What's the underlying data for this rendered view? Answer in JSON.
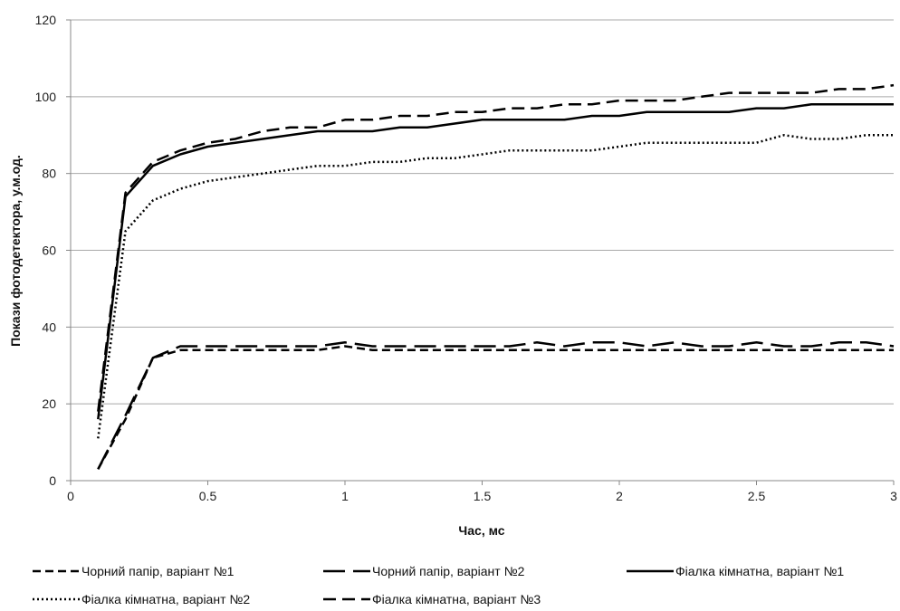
{
  "chart_data": {
    "type": "line",
    "title": "",
    "xlabel": "Час, мс",
    "ylabel": "Покази фотодетектора, у.м.од.",
    "xlim": [
      0,
      3
    ],
    "ylim": [
      0,
      120
    ],
    "xticks": [
      0,
      0.5,
      1,
      1.5,
      2,
      2.5,
      3
    ],
    "xtick_labels": [
      "0",
      "0.5",
      "1",
      "1.5",
      "2",
      "2.5",
      "3"
    ],
    "yticks": [
      0,
      20,
      40,
      60,
      80,
      100,
      120
    ],
    "ytick_labels": [
      "0",
      "20",
      "40",
      "60",
      "80",
      "100",
      "120"
    ],
    "grid": "horizontal",
    "legend_position": "bottom",
    "x": [
      0.1,
      0.2,
      0.3,
      0.4,
      0.5,
      0.6,
      0.7,
      0.8,
      0.9,
      1.0,
      1.1,
      1.2,
      1.3,
      1.4,
      1.5,
      1.6,
      1.7,
      1.8,
      1.9,
      2.0,
      2.1,
      2.2,
      2.3,
      2.4,
      2.5,
      2.6,
      2.7,
      2.8,
      2.9,
      3.0
    ],
    "series": [
      {
        "name": "Чорний папір, варіант №1",
        "style": "short-dash",
        "values": [
          3,
          16,
          32,
          34,
          34,
          34,
          34,
          34,
          34,
          35,
          34,
          34,
          34,
          34,
          34,
          34,
          34,
          34,
          34,
          34,
          34,
          34,
          34,
          34,
          34,
          34,
          34,
          34,
          34,
          34
        ]
      },
      {
        "name": "Чорний папір, варіант №2",
        "style": "long-dash",
        "values": [
          3,
          17,
          32,
          35,
          35,
          35,
          35,
          35,
          35,
          36,
          35,
          35,
          35,
          35,
          35,
          35,
          36,
          35,
          36,
          36,
          35,
          36,
          35,
          35,
          36,
          35,
          35,
          36,
          36,
          35
        ]
      },
      {
        "name": "Фіалка кімнатна, варіант №1",
        "style": "solid",
        "values": [
          16,
          74,
          82,
          85,
          87,
          88,
          89,
          90,
          91,
          91,
          91,
          92,
          92,
          93,
          94,
          94,
          94,
          94,
          95,
          95,
          96,
          96,
          96,
          96,
          97,
          97,
          98,
          98,
          98,
          98
        ]
      },
      {
        "name": "Фіалка кімнатна, варіант №2",
        "style": "dotted",
        "values": [
          11,
          65,
          73,
          76,
          78,
          79,
          80,
          81,
          82,
          82,
          83,
          83,
          84,
          84,
          85,
          86,
          86,
          86,
          86,
          87,
          88,
          88,
          88,
          88,
          88,
          90,
          89,
          89,
          90,
          90
        ]
      },
      {
        "name": "Фіалка кімнатна, варіант №3",
        "style": "medium-dash",
        "values": [
          18,
          75,
          83,
          86,
          88,
          89,
          91,
          92,
          92,
          94,
          94,
          95,
          95,
          96,
          96,
          97,
          97,
          98,
          98,
          99,
          99,
          99,
          100,
          101,
          101,
          101,
          101,
          102,
          102,
          103
        ]
      }
    ]
  }
}
